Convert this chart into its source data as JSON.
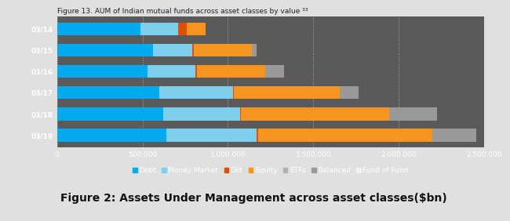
{
  "title": "Figure 13. AUM of Indian mutual funds across asset classes by value ³³",
  "caption": "Figure 2: Assets Under Management across asset classes($bn)",
  "years": [
    "03/14",
    "03/15",
    "03/16",
    "03/17",
    "03/18",
    "03/19"
  ],
  "segments": {
    "Debt": [
      490000,
      560000,
      530000,
      600000,
      620000,
      640000
    ],
    "Money Market": [
      220000,
      230000,
      280000,
      430000,
      450000,
      530000
    ],
    "Gilt": [
      50000,
      10000,
      10000,
      5000,
      5000,
      5000
    ],
    "Equity": [
      110000,
      340000,
      400000,
      620000,
      870000,
      1020000
    ],
    "ETFs": [
      0,
      0,
      0,
      0,
      0,
      0
    ],
    "Balanced": [
      0,
      30000,
      110000,
      110000,
      280000,
      260000
    ],
    "Fund of Fund": [
      0,
      0,
      0,
      0,
      0,
      0
    ]
  },
  "colors": {
    "Debt": "#00aaee",
    "Money Market": "#7ecfee",
    "Gilt": "#e05000",
    "Equity": "#f79520",
    "ETFs": "#b0b0b0",
    "Balanced": "#999999",
    "Fund of Fund": "#d0d0d0"
  },
  "legend_marker_colors": {
    "Debt": "#00aaee",
    "Money Market": "#7ecfee",
    "Gilt": "#e05000",
    "Equity": "#f79520",
    "ETFs": "#b0b0b0",
    "Balanced": "#999999",
    "Fund of Fund": "#f0f0f0"
  },
  "xlim": [
    0,
    2500000
  ],
  "xtick_values": [
    0,
    500000,
    1000000,
    1500000,
    2000000,
    2500000
  ],
  "xtick_labels": [
    "0",
    "500,000",
    "1,000,000",
    "1,500,000",
    "2,000,000",
    "2,500,000"
  ],
  "chart_bg": "#5a5a5a",
  "legend_bg": "#5a5a5a",
  "outer_bg": "#e0e0e0",
  "caption_bg": "#ffffff",
  "bar_height": 0.6,
  "title_fontsize": 6.5,
  "axis_fontsize": 6.5,
  "legend_fontsize": 6.5,
  "caption_fontsize": 10
}
